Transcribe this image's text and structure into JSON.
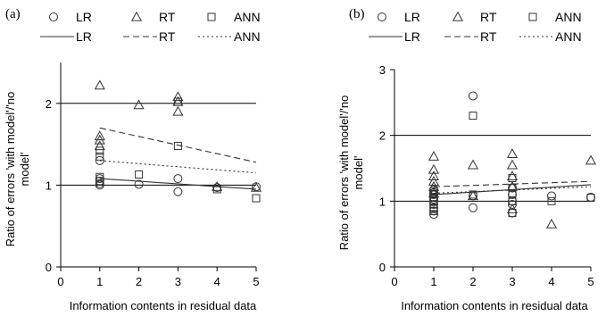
{
  "chart_data": [
    {
      "type": "scatter",
      "panel_label": "(a)",
      "xlabel": "Information contents in residual data",
      "ylabel": "Ratio of errors 'with model'/'no model'",
      "xlim": [
        0,
        5
      ],
      "ylim": [
        0,
        2.5
      ],
      "xticks": [
        "0",
        "1",
        "2",
        "3",
        "4",
        "5"
      ],
      "yticks": [
        "0",
        "1",
        "2"
      ],
      "ytick_values": [
        0,
        1,
        2
      ],
      "reference_lines": [
        1,
        2
      ],
      "legend_position": "top",
      "marker_legend": [
        {
          "label": "LR",
          "marker": "circle"
        },
        {
          "label": "RT",
          "marker": "triangle"
        },
        {
          "label": "ANN",
          "marker": "square"
        }
      ],
      "line_legend": [
        {
          "label": "LR",
          "style": "solid"
        },
        {
          "label": "RT",
          "style": "dashed"
        },
        {
          "label": "ANN",
          "style": "dotted"
        }
      ],
      "series": [
        {
          "name": "LR",
          "marker": "circle",
          "x": [
            1,
            1,
            1,
            1,
            1,
            2,
            3,
            3,
            4,
            5
          ],
          "y": [
            1.0,
            1.02,
            1.05,
            1.08,
            1.3,
            1.01,
            1.08,
            0.92,
            0.97,
            0.98
          ]
        },
        {
          "name": "RT",
          "marker": "triangle",
          "x": [
            1,
            1,
            1,
            1,
            2,
            3,
            3,
            3,
            4,
            5
          ],
          "y": [
            2.22,
            1.6,
            1.55,
            1.48,
            1.98,
            2.08,
            1.9,
            2.02,
            0.98,
            0.97
          ]
        },
        {
          "name": "ANN",
          "marker": "square",
          "x": [
            1,
            1,
            1,
            1,
            2,
            3,
            3,
            4,
            5
          ],
          "y": [
            1.42,
            1.35,
            1.1,
            1.05,
            1.13,
            2.02,
            1.48,
            0.95,
            0.84
          ]
        }
      ],
      "trend_lines": [
        {
          "name": "LR",
          "style": "solid",
          "x": [
            1,
            5
          ],
          "y": [
            1.08,
            0.95
          ]
        },
        {
          "name": "RT",
          "style": "dashed",
          "x": [
            1,
            5
          ],
          "y": [
            1.7,
            1.28
          ]
        },
        {
          "name": "ANN",
          "style": "dotted",
          "x": [
            1,
            5
          ],
          "y": [
            1.3,
            1.15
          ]
        }
      ]
    },
    {
      "type": "scatter",
      "panel_label": "(b)",
      "xlabel": "Information contents in residual data",
      "ylabel": "Ratio of errors 'with model'/'no model'",
      "xlim": [
        0,
        5
      ],
      "ylim": [
        0,
        3
      ],
      "xticks": [
        "0",
        "1",
        "2",
        "3",
        "4",
        "5"
      ],
      "yticks": [
        "0",
        "1",
        "2",
        "3"
      ],
      "ytick_values": [
        0,
        1,
        2,
        3
      ],
      "reference_lines": [
        1,
        2
      ],
      "legend_position": "top",
      "marker_legend": [
        {
          "label": "LR",
          "marker": "circle"
        },
        {
          "label": "RT",
          "marker": "triangle"
        },
        {
          "label": "ANN",
          "marker": "square"
        }
      ],
      "line_legend": [
        {
          "label": "LR",
          "style": "solid"
        },
        {
          "label": "RT",
          "style": "dashed"
        },
        {
          "label": "ANN",
          "style": "dotted"
        }
      ],
      "series": [
        {
          "name": "LR",
          "marker": "circle",
          "x": [
            1,
            1,
            1,
            1,
            1,
            1,
            1,
            1,
            1,
            1,
            2,
            2,
            2,
            3,
            3,
            3,
            3,
            3,
            4,
            5
          ],
          "y": [
            0.8,
            0.85,
            0.9,
            0.95,
            1.0,
            1.03,
            1.06,
            1.1,
            1.13,
            1.17,
            2.6,
            1.08,
            0.9,
            1.2,
            1.1,
            1.0,
            0.82,
            0.95,
            1.08,
            1.06
          ]
        },
        {
          "name": "RT",
          "marker": "triangle",
          "x": [
            1,
            1,
            1,
            1,
            1,
            1,
            2,
            2,
            3,
            3,
            3,
            3,
            3,
            4,
            5
          ],
          "y": [
            1.68,
            1.48,
            1.38,
            1.3,
            1.22,
            1.12,
            1.55,
            1.08,
            1.72,
            1.55,
            1.38,
            1.22,
            0.88,
            0.65,
            1.62
          ]
        },
        {
          "name": "ANN",
          "marker": "square",
          "x": [
            1,
            1,
            1,
            1,
            1,
            1,
            1,
            1,
            2,
            2,
            3,
            3,
            3,
            3,
            3,
            4,
            5
          ],
          "y": [
            1.15,
            1.1,
            1.05,
            1.0,
            0.95,
            0.9,
            0.88,
            0.85,
            2.3,
            1.1,
            1.35,
            1.2,
            1.12,
            1.0,
            0.82,
            1.0,
            1.05
          ]
        }
      ],
      "trend_lines": [
        {
          "name": "LR",
          "style": "solid",
          "x": [
            1,
            5
          ],
          "y": [
            1.1,
            1.25
          ]
        },
        {
          "name": "RT",
          "style": "dashed",
          "x": [
            1,
            5
          ],
          "y": [
            1.22,
            1.3
          ]
        },
        {
          "name": "ANN",
          "style": "dotted",
          "x": [
            1,
            5
          ],
          "y": [
            1.12,
            1.22
          ]
        }
      ]
    }
  ]
}
